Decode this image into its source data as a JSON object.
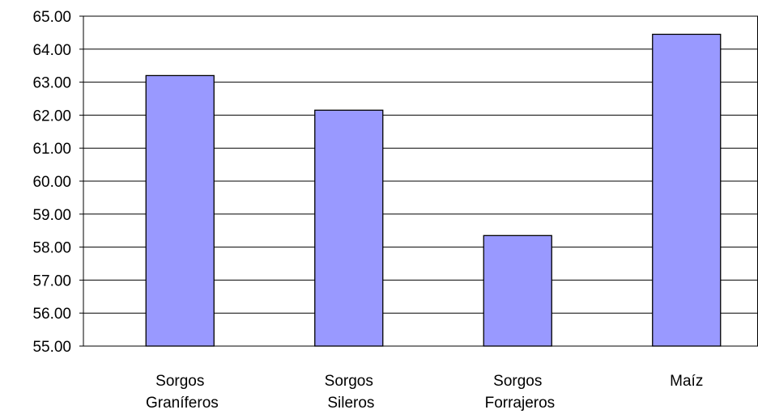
{
  "chart_data": {
    "type": "bar",
    "categories": [
      "Sorgos Graníferos",
      "Sorgos Sileros",
      "Sorgos Forrajeros",
      "Maíz"
    ],
    "values": [
      63.2,
      62.15,
      58.35,
      64.45
    ],
    "color": "#9999ff",
    "ylim": [
      55,
      65
    ],
    "yticks": [
      {
        "value": 55,
        "label": "55.00"
      },
      {
        "value": 56,
        "label": "56.00"
      },
      {
        "value": 57,
        "label": "57.00"
      },
      {
        "value": 58,
        "label": "58.00"
      },
      {
        "value": 59,
        "label": "59.00"
      },
      {
        "value": 60,
        "label": "60.00"
      },
      {
        "value": 61,
        "label": "61.00"
      },
      {
        "value": 62,
        "label": "62.00"
      },
      {
        "value": 63,
        "label": "63.00"
      },
      {
        "value": 64,
        "label": "64.00"
      },
      {
        "value": 65,
        "label": "65.00"
      }
    ],
    "grid": true
  }
}
